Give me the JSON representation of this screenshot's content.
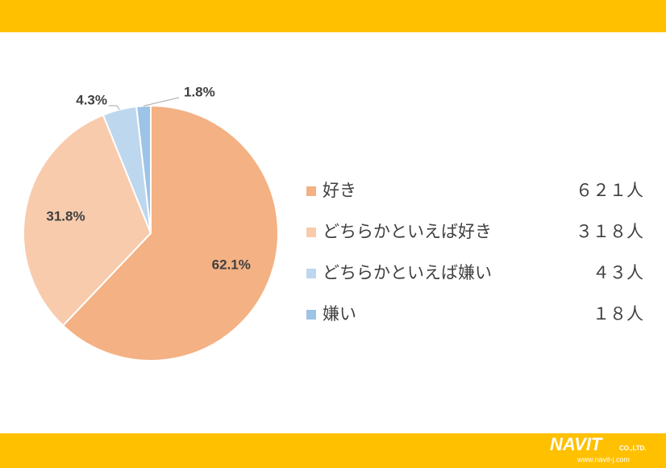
{
  "chart_data": {
    "type": "pie",
    "categories": [
      "好き",
      "どちらかといえば好き",
      "どちらかといえば嫌い",
      "嫌い"
    ],
    "values": [
      62.1,
      31.8,
      4.3,
      1.8
    ],
    "value_labels": [
      "62.1%",
      "31.8%",
      "4.3%",
      "1.8%"
    ],
    "colors": [
      "#f4b183",
      "#f8cbad",
      "#bdd7ee",
      "#9dc3e6"
    ],
    "counts": [
      621,
      318,
      43,
      18
    ],
    "count_labels": [
      "６２１人",
      "３１８人",
      "４３人",
      "１８人"
    ]
  },
  "logo": {
    "name": "NAVIT",
    "suffix": "CO.,LTD.",
    "url": "www.navit-j.com"
  }
}
